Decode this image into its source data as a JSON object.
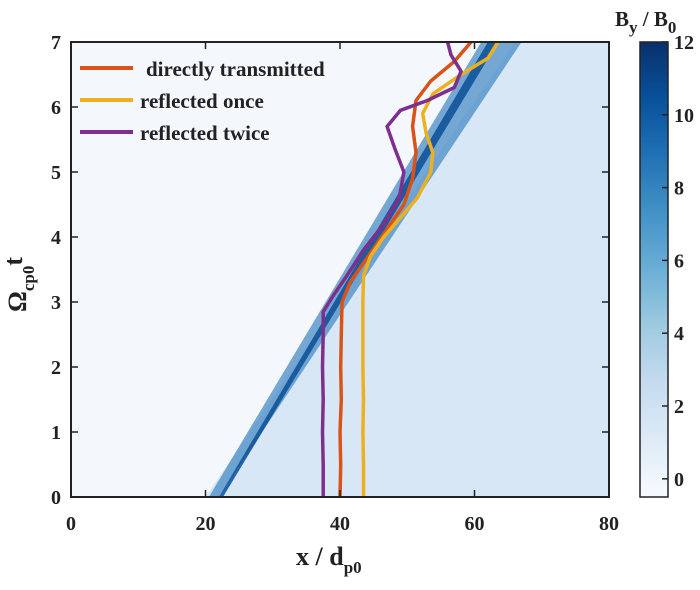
{
  "chart_data": {
    "type": "heatmap",
    "title": "",
    "xlabel": {
      "base": "x / d",
      "sub": "p0"
    },
    "ylabel": {
      "base": "Ω",
      "sub": "cp0",
      "tail": "t"
    },
    "xlim": [
      0,
      80
    ],
    "ylim": [
      0,
      7
    ],
    "x_ticks": [
      "0",
      "20",
      "40",
      "60",
      "80"
    ],
    "y_ticks": [
      "0",
      "1",
      "2",
      "3",
      "4",
      "5",
      "6",
      "7"
    ],
    "heatmap_description": "shock front ramp from x=20 at t=0 to x=66 at t=7, By/B0 up to 12 at the front, ~1.5 downstream, ~0.4 upstream",
    "colorbar": {
      "label": {
        "base": "B",
        "sub1": "y",
        "mid": " / B",
        "sub2": "0"
      },
      "range": [
        -0.5,
        12
      ],
      "ticks": [
        "0",
        "2",
        "4",
        "6",
        "8",
        "10",
        "12"
      ],
      "colors": [
        "#f7fbff",
        "#deebf7",
        "#c6dbef",
        "#9ecae1",
        "#6baed6",
        "#4292c6",
        "#2171b5",
        "#08519c",
        "#08306b"
      ]
    },
    "series": [
      {
        "name": "directly transmitted",
        "color": "#d95319",
        "points": [
          [
            40.0,
            0
          ],
          [
            40.1,
            0.5
          ],
          [
            40.0,
            1.0
          ],
          [
            40.2,
            1.5
          ],
          [
            40.1,
            2.0
          ],
          [
            40.2,
            2.5
          ],
          [
            40.3,
            3.0
          ],
          [
            41.5,
            3.3
          ],
          [
            43.5,
            3.6
          ],
          [
            45.5,
            3.9
          ],
          [
            47.5,
            4.2
          ],
          [
            49.5,
            4.5
          ],
          [
            50.8,
            4.9
          ],
          [
            51.3,
            5.3
          ],
          [
            50.8,
            5.7
          ],
          [
            51.3,
            6.1
          ],
          [
            53.5,
            6.4
          ],
          [
            57.0,
            6.7
          ],
          [
            59.5,
            7.0
          ]
        ]
      },
      {
        "name": "reflected once",
        "color": "#edb120",
        "points": [
          [
            43.5,
            0
          ],
          [
            43.5,
            0.5
          ],
          [
            43.4,
            1.0
          ],
          [
            43.5,
            1.5
          ],
          [
            43.4,
            2.0
          ],
          [
            43.4,
            2.5
          ],
          [
            43.4,
            3.0
          ],
          [
            43.5,
            3.4
          ],
          [
            44.5,
            3.7
          ],
          [
            46.5,
            4.0
          ],
          [
            49.0,
            4.3
          ],
          [
            51.5,
            4.6
          ],
          [
            53.5,
            5.0
          ],
          [
            53.8,
            5.3
          ],
          [
            52.8,
            5.6
          ],
          [
            52.3,
            5.9
          ],
          [
            53.8,
            6.2
          ],
          [
            58.0,
            6.5
          ],
          [
            62.0,
            6.75
          ],
          [
            63.5,
            7.0
          ]
        ]
      },
      {
        "name": "reflected twice",
        "color": "#7e2f8e",
        "points": [
          [
            37.5,
            0
          ],
          [
            37.5,
            0.5
          ],
          [
            37.4,
            1.0
          ],
          [
            37.5,
            1.5
          ],
          [
            37.4,
            2.0
          ],
          [
            37.5,
            2.5
          ],
          [
            37.5,
            2.85
          ],
          [
            39.0,
            3.1
          ],
          [
            41.0,
            3.4
          ],
          [
            43.5,
            3.8
          ],
          [
            46.5,
            4.2
          ],
          [
            48.8,
            4.6
          ],
          [
            49.5,
            5.0
          ],
          [
            48.2,
            5.35
          ],
          [
            47.0,
            5.7
          ],
          [
            49.0,
            5.95
          ],
          [
            53.0,
            6.1
          ],
          [
            57.0,
            6.3
          ],
          [
            58.0,
            6.55
          ],
          [
            56.5,
            6.8
          ],
          [
            56.0,
            7.0
          ]
        ]
      }
    ],
    "legend": "top-left"
  }
}
